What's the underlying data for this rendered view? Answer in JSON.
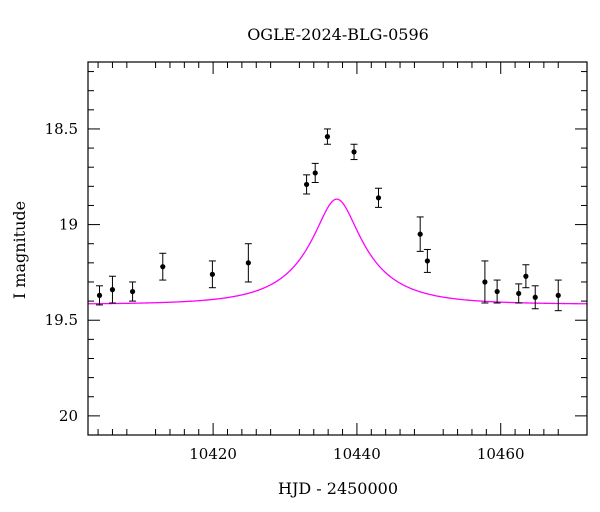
{
  "chart_data": {
    "type": "scatter",
    "title": "OGLE-2024-BLG-0596",
    "xlabel": "HJD - 2450000",
    "ylabel": "I magnitude",
    "xlim": [
      10402.6,
      10472.0
    ],
    "ylim": [
      20.1,
      18.15
    ],
    "y_inverted": true,
    "x_ticks": [
      10420,
      10440,
      10460
    ],
    "x_tick_labels": [
      "10420",
      "10440",
      "10460"
    ],
    "y_ticks": [
      18.5,
      19,
      19.5,
      20
    ],
    "y_tick_labels": [
      "18.5",
      "19",
      "19.5",
      "20"
    ],
    "grid": false,
    "colors": {
      "points": "#000000",
      "model": "#ff00ff"
    },
    "series": [
      {
        "type": "errorbar",
        "points": [
          {
            "x": 10404.2,
            "y": 19.37,
            "err": 0.05
          },
          {
            "x": 10406.0,
            "y": 19.34,
            "err": 0.07
          },
          {
            "x": 10408.8,
            "y": 19.35,
            "err": 0.05
          },
          {
            "x": 10413.0,
            "y": 19.22,
            "err": 0.07
          },
          {
            "x": 10419.9,
            "y": 19.26,
            "err": 0.07
          },
          {
            "x": 10424.9,
            "y": 19.2,
            "err": 0.1
          },
          {
            "x": 10433.0,
            "y": 18.79,
            "err": 0.05
          },
          {
            "x": 10434.2,
            "y": 18.73,
            "err": 0.05
          },
          {
            "x": 10435.9,
            "y": 18.54,
            "err": 0.04
          },
          {
            "x": 10439.6,
            "y": 18.62,
            "err": 0.04
          },
          {
            "x": 10443.0,
            "y": 18.86,
            "err": 0.05
          },
          {
            "x": 10448.8,
            "y": 19.05,
            "err": 0.09
          },
          {
            "x": 10449.8,
            "y": 19.19,
            "err": 0.06
          },
          {
            "x": 10457.8,
            "y": 19.3,
            "err": 0.11
          },
          {
            "x": 10459.5,
            "y": 19.35,
            "err": 0.06
          },
          {
            "x": 10462.5,
            "y": 19.36,
            "err": 0.05
          },
          {
            "x": 10463.5,
            "y": 19.27,
            "err": 0.06
          },
          {
            "x": 10464.8,
            "y": 19.38,
            "err": 0.06
          },
          {
            "x": 10468.0,
            "y": 19.37,
            "err": 0.08
          }
        ]
      },
      {
        "type": "line",
        "model": {
          "t0": 10437.2,
          "u0": 0.3,
          "tE": 10.0,
          "fs": 0.27,
          "I_base": 19.417
        }
      }
    ]
  }
}
